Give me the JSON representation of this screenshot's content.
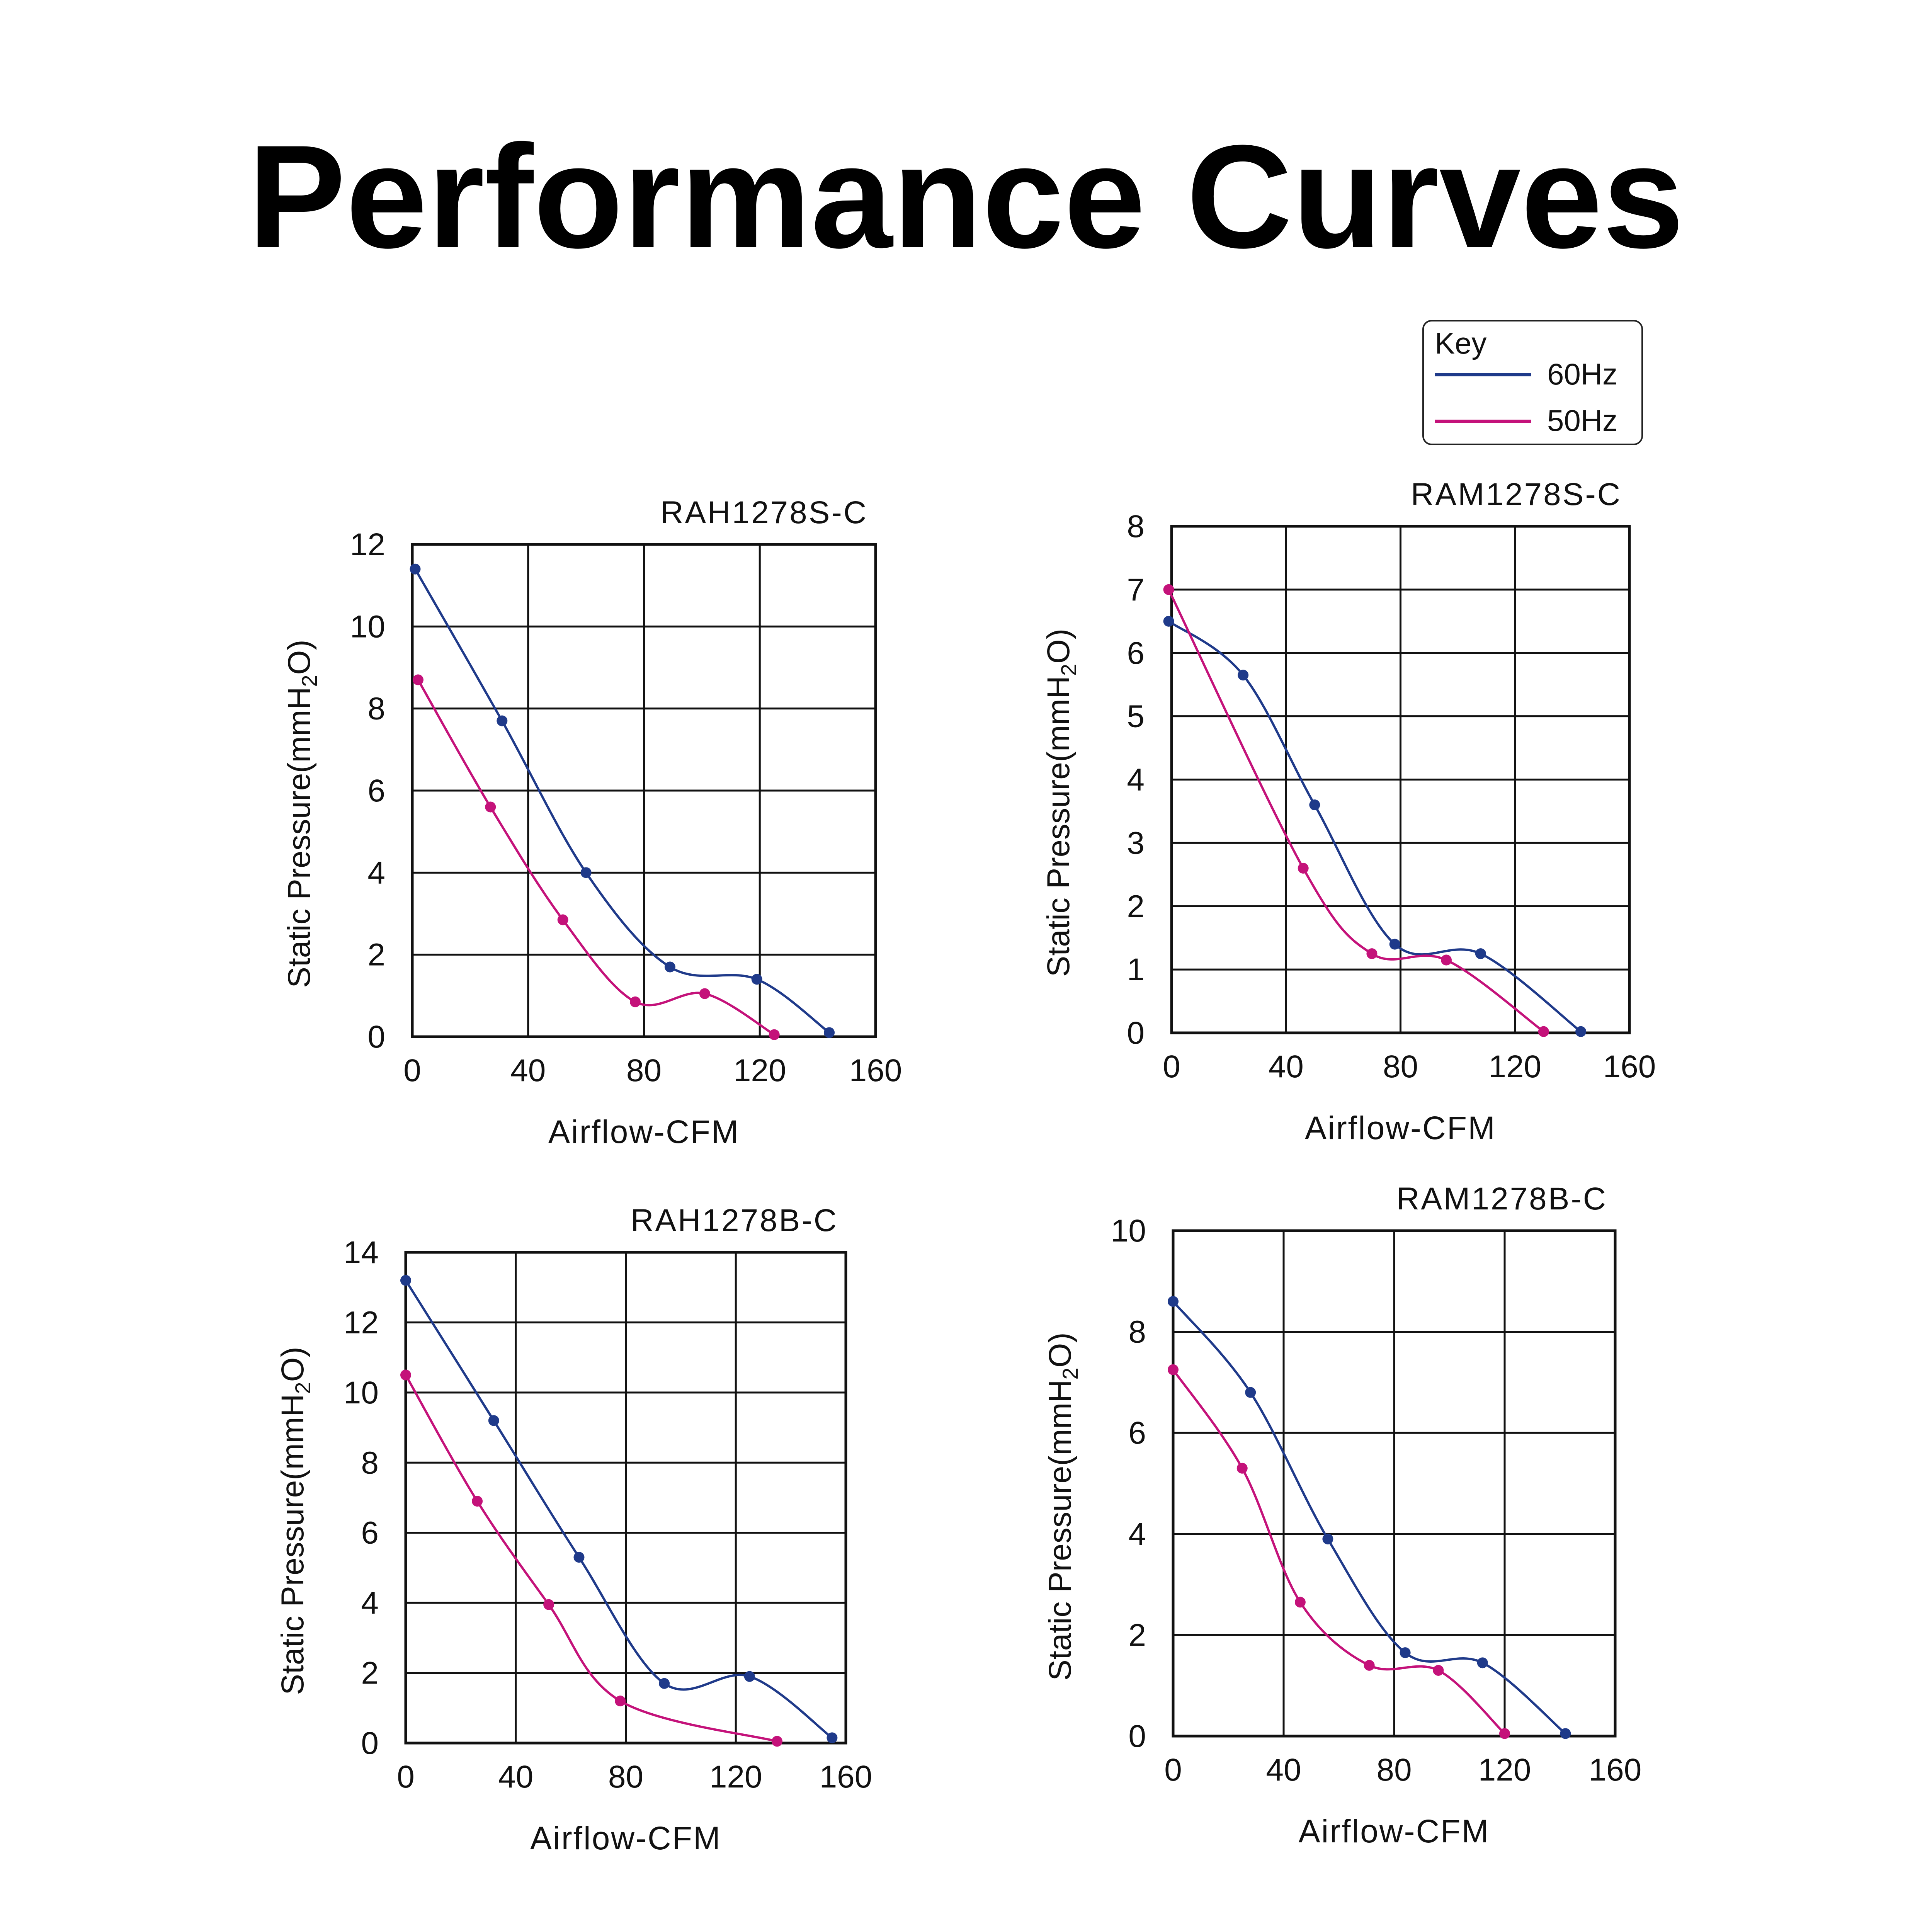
{
  "page": {
    "title": "Performance Curves"
  },
  "legend": {
    "title": "Key",
    "entries": [
      {
        "label": "60Hz",
        "color": "#1f3a8a"
      },
      {
        "label": "50Hz",
        "color": "#c4127a"
      }
    ]
  },
  "chart_data": [
    {
      "type": "line",
      "title": "RAH1278S-C",
      "xlabel": "Airflow-CFM",
      "ylabel": "Static Pressure(mmH2O)",
      "xlim": [
        0,
        160
      ],
      "ylim": [
        0,
        12
      ],
      "xticks": [
        0,
        40,
        80,
        120,
        160
      ],
      "yticks": [
        0,
        2,
        4,
        6,
        8,
        10,
        12
      ],
      "grid": true,
      "series": [
        {
          "name": "60Hz",
          "color": "#1f3a8a",
          "x": [
            1,
            31,
            60,
            89,
            119,
            144
          ],
          "y": [
            11.4,
            7.7,
            4.0,
            1.7,
            1.4,
            0.1
          ]
        },
        {
          "name": "50Hz",
          "color": "#c4127a",
          "x": [
            2,
            27,
            52,
            77,
            101,
            125
          ],
          "y": [
            8.7,
            5.6,
            2.85,
            0.85,
            1.05,
            0.05
          ]
        }
      ]
    },
    {
      "type": "line",
      "title": "RAM1278S-C",
      "xlabel": "Airflow-CFM",
      "ylabel": "Static Pressure(mmH2O)",
      "xlim": [
        0,
        160
      ],
      "ylim": [
        0,
        8
      ],
      "xticks": [
        0,
        40,
        80,
        120,
        160
      ],
      "yticks": [
        0,
        1,
        2,
        3,
        4,
        5,
        6,
        7,
        8
      ],
      "grid": true,
      "series": [
        {
          "name": "60Hz",
          "color": "#1f3a8a",
          "x": [
            -1,
            25,
            50,
            78,
            108,
            143
          ],
          "y": [
            6.5,
            5.65,
            3.6,
            1.4,
            1.25,
            0.02
          ]
        },
        {
          "name": "50Hz",
          "color": "#c4127a",
          "x": [
            -1,
            46,
            70,
            96,
            130
          ],
          "y": [
            7.0,
            2.6,
            1.25,
            1.15,
            0.02
          ]
        }
      ]
    },
    {
      "type": "line",
      "title": "RAH1278B-C",
      "xlabel": "Airflow-CFM",
      "ylabel": "Static Pressure(mmH2O)",
      "xlim": [
        0,
        160
      ],
      "ylim": [
        0,
        14
      ],
      "xticks": [
        0,
        40,
        80,
        120,
        160
      ],
      "yticks": [
        0,
        2,
        4,
        6,
        8,
        10,
        12,
        14
      ],
      "grid": true,
      "series": [
        {
          "name": "60Hz",
          "color": "#1f3a8a",
          "x": [
            0,
            32,
            63,
            94,
            125,
            155
          ],
          "y": [
            13.2,
            9.2,
            5.3,
            1.7,
            1.9,
            0.15
          ]
        },
        {
          "name": "50Hz",
          "color": "#c4127a",
          "x": [
            0,
            26,
            52,
            78,
            135
          ],
          "y": [
            10.5,
            6.9,
            3.95,
            1.2,
            0.05
          ]
        }
      ]
    },
    {
      "type": "line",
      "title": "RAM1278B-C",
      "xlabel": "Airflow-CFM",
      "ylabel": "Static Pressure(mmH2O)",
      "xlim": [
        0,
        160
      ],
      "ylim": [
        0,
        10
      ],
      "xticks": [
        0,
        40,
        80,
        120,
        160
      ],
      "yticks": [
        0,
        2,
        4,
        6,
        8,
        10
      ],
      "grid": true,
      "series": [
        {
          "name": "60Hz",
          "color": "#1f3a8a",
          "x": [
            0,
            28,
            56,
            84,
            112,
            142
          ],
          "y": [
            8.6,
            6.8,
            3.9,
            1.65,
            1.45,
            0.05
          ]
        },
        {
          "name": "50Hz",
          "color": "#c4127a",
          "x": [
            0,
            25,
            46,
            71,
            96,
            120
          ],
          "y": [
            7.25,
            5.3,
            2.65,
            1.4,
            1.3,
            0.05
          ]
        }
      ]
    }
  ]
}
